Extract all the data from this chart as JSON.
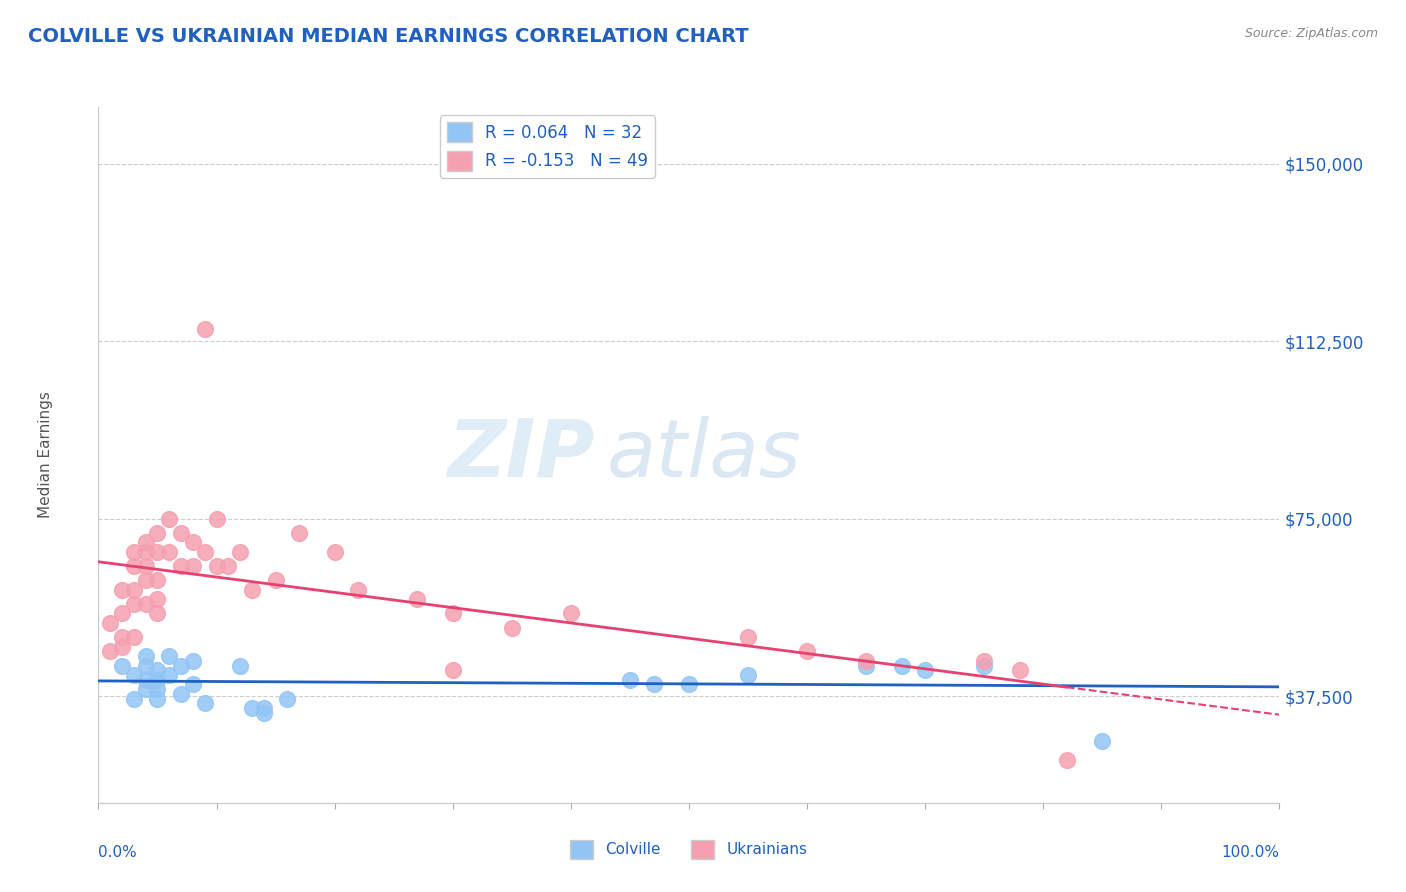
{
  "title": "COLVILLE VS UKRAINIAN MEDIAN EARNINGS CORRELATION CHART",
  "source": "Source: ZipAtlas.com",
  "ylabel": "Median Earnings",
  "yticks": [
    37500,
    75000,
    112500,
    150000
  ],
  "ytick_labels": [
    "$37,500",
    "$75,000",
    "$112,500",
    "$150,000"
  ],
  "ylim": [
    15000,
    162000
  ],
  "xlim": [
    0.0,
    1.0
  ],
  "colville_R": 0.064,
  "colville_N": 32,
  "ukrainian_R": -0.153,
  "ukrainian_N": 49,
  "colville_color": "#92c5f5",
  "ukrainian_color": "#f5a0b0",
  "colville_line_color": "#2060c0",
  "ukrainian_line_color": "#e84070",
  "title_color": "#2060c0",
  "tick_label_color": "#2060c0",
  "watermark_zip": "ZIP",
  "watermark_atlas": "atlas",
  "background_color": "#ffffff",
  "colville_x": [
    0.02,
    0.03,
    0.03,
    0.04,
    0.04,
    0.04,
    0.04,
    0.05,
    0.05,
    0.05,
    0.05,
    0.06,
    0.06,
    0.07,
    0.07,
    0.08,
    0.08,
    0.09,
    0.12,
    0.13,
    0.14,
    0.14,
    0.16,
    0.45,
    0.47,
    0.5,
    0.55,
    0.65,
    0.68,
    0.7,
    0.75,
    0.85
  ],
  "colville_y": [
    44000,
    42000,
    37000,
    46000,
    44000,
    41000,
    39000,
    43000,
    41000,
    39000,
    37000,
    46000,
    42000,
    44000,
    38000,
    45000,
    40000,
    36000,
    44000,
    35000,
    35000,
    34000,
    37000,
    41000,
    40000,
    40000,
    42000,
    44000,
    44000,
    43000,
    44000,
    28000
  ],
  "ukrainian_x": [
    0.01,
    0.01,
    0.02,
    0.02,
    0.02,
    0.02,
    0.03,
    0.03,
    0.03,
    0.03,
    0.03,
    0.04,
    0.04,
    0.04,
    0.04,
    0.04,
    0.05,
    0.05,
    0.05,
    0.05,
    0.05,
    0.06,
    0.06,
    0.07,
    0.07,
    0.08,
    0.08,
    0.09,
    0.09,
    0.1,
    0.1,
    0.11,
    0.12,
    0.13,
    0.15,
    0.17,
    0.2,
    0.22,
    0.27,
    0.3,
    0.3,
    0.35,
    0.4,
    0.55,
    0.6,
    0.65,
    0.75,
    0.78,
    0.82
  ],
  "ukrainian_y": [
    53000,
    47000,
    60000,
    55000,
    50000,
    48000,
    68000,
    65000,
    60000,
    57000,
    50000,
    70000,
    68000,
    65000,
    62000,
    57000,
    72000,
    68000,
    62000,
    58000,
    55000,
    75000,
    68000,
    72000,
    65000,
    70000,
    65000,
    115000,
    68000,
    75000,
    65000,
    65000,
    68000,
    60000,
    62000,
    72000,
    68000,
    60000,
    58000,
    43000,
    55000,
    52000,
    55000,
    50000,
    47000,
    45000,
    45000,
    43000,
    24000
  ]
}
